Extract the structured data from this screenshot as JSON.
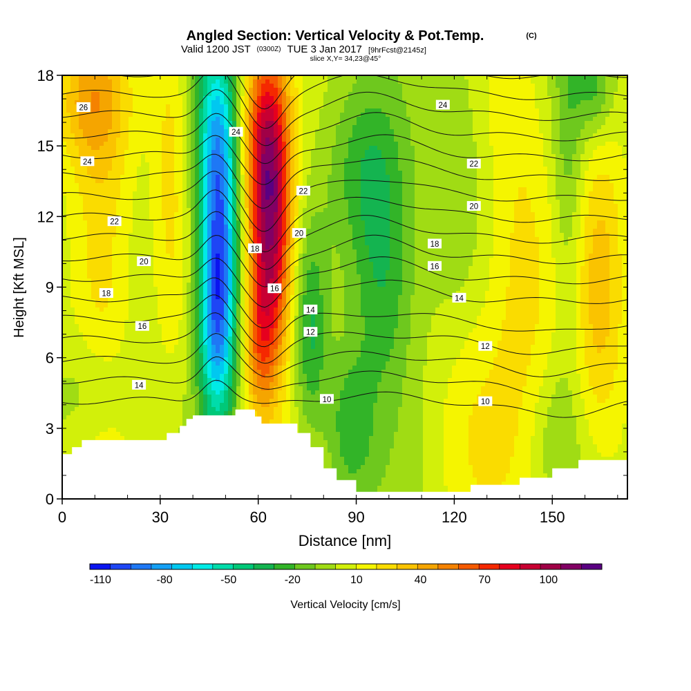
{
  "header": {
    "title": "Angled Section: Vertical Velocity & Pot.Temp.",
    "title_unit": "(C)",
    "valid_main": "Valid 1200 JST",
    "valid_z": "(0300Z)",
    "valid_date": "TUE 3 Jan 2017",
    "valid_fcst": "[9hrFcst@2145z]",
    "slice": "slice X,Y= 34,23@45°"
  },
  "chart_data": {
    "type": "heatmap",
    "title": "Angled Section: Vertical Velocity & Pot.Temp.",
    "xlabel": "Distance [nm]",
    "ylabel": "Height [Kft MSL]",
    "xlim": [
      0,
      173
    ],
    "ylim": [
      0,
      18
    ],
    "x_ticks": [
      0,
      30,
      60,
      90,
      120,
      150
    ],
    "y_ticks": [
      0,
      3,
      6,
      9,
      12,
      15,
      18
    ],
    "colorbar": {
      "label": "Vertical Velocity [cm/s]",
      "min": -115,
      "max": 125,
      "step": 10,
      "tick_labels": [
        "-110",
        "-80",
        "-50",
        "-20",
        "10",
        "40",
        "70",
        "100"
      ],
      "tick_values": [
        -110,
        -80,
        -50,
        -20,
        10,
        40,
        70,
        100
      ],
      "colors": [
        "#0a14f0",
        "#1e46f5",
        "#1e78f5",
        "#14a0f5",
        "#00c8f0",
        "#00ebe6",
        "#00dcaa",
        "#00c878",
        "#14b450",
        "#32b428",
        "#6ec81e",
        "#a0dc14",
        "#d2f00a",
        "#f5f500",
        "#fadc00",
        "#fac300",
        "#f5a500",
        "#f58200",
        "#f55a00",
        "#f52800",
        "#e6001e",
        "#c80032",
        "#a00046",
        "#820064",
        "#5a0082"
      ]
    },
    "surface": {
      "x": [
        0,
        3,
        3,
        6,
        6,
        8,
        8,
        12,
        12,
        18,
        18,
        22,
        22,
        24,
        24,
        32,
        32,
        36,
        36,
        38,
        38,
        40,
        40,
        53,
        53,
        59,
        59,
        61,
        61,
        65,
        65,
        72,
        72,
        76,
        76,
        80,
        80,
        84,
        84,
        90,
        90,
        125,
        125,
        140,
        140,
        150,
        150,
        158,
        158,
        173
      ],
      "height": [
        1.9,
        1.9,
        2.2,
        2.2,
        2.5,
        2.5,
        2.5,
        2.5,
        2.5,
        2.5,
        2.5,
        2.5,
        2.5,
        2.5,
        2.5,
        2.5,
        2.8,
        2.8,
        3.1,
        3.1,
        3.4,
        3.4,
        3.55,
        3.55,
        3.8,
        3.8,
        3.5,
        3.5,
        3.2,
        3.2,
        3.2,
        3.2,
        2.8,
        2.8,
        2.2,
        2.2,
        1.3,
        1.3,
        0.8,
        0.8,
        0.3,
        0.3,
        0.6,
        0.6,
        0.9,
        0.9,
        1.3,
        1.3,
        1.65,
        1.65
      ]
    },
    "velocity_features": [
      {
        "x": 48,
        "z": 11,
        "sx": 4.2,
        "sz": 4.5,
        "w": -88
      },
      {
        "x": 47,
        "z": 7,
        "sx": 4.0,
        "sz": 3.0,
        "w": -45
      },
      {
        "x": 47,
        "z": 16,
        "sx": 4.5,
        "sz": 3.0,
        "w": -35
      },
      {
        "x": 64,
        "z": 11,
        "sx": 4.6,
        "sz": 4.2,
        "w": 95
      },
      {
        "x": 62,
        "z": 15.5,
        "sx": 5.0,
        "sz": 3.0,
        "w": 55
      },
      {
        "x": 60,
        "z": 6.5,
        "sx": 3.5,
        "sz": 2.5,
        "w": 35
      },
      {
        "x": 76,
        "z": 7,
        "sx": 3.5,
        "sz": 3.0,
        "w": -30
      },
      {
        "x": 98,
        "z": 9.5,
        "sx": 7.0,
        "sz": 4.0,
        "w": -35
      },
      {
        "x": 88,
        "z": 3,
        "sx": 5.0,
        "sz": 2.2,
        "w": -25
      },
      {
        "x": 92,
        "z": 14,
        "sx": 8.0,
        "sz": 2.5,
        "w": -20
      },
      {
        "x": 33,
        "z": 15,
        "sx": 4.0,
        "sz": 6.0,
        "w": 22
      },
      {
        "x": 12,
        "z": 10,
        "sx": 7.0,
        "sz": 7.0,
        "w": 28
      },
      {
        "x": 8,
        "z": 17,
        "sx": 8.0,
        "sz": 2.0,
        "w": 30
      },
      {
        "x": 10,
        "z": 4.5,
        "sx": 7.0,
        "sz": 1.8,
        "w": -18
      },
      {
        "x": 140,
        "z": 9,
        "sx": 8.0,
        "sz": 8.0,
        "w": 22
      },
      {
        "x": 165,
        "z": 9,
        "sx": 6.0,
        "sz": 5.0,
        "w": 32
      },
      {
        "x": 155,
        "z": 14,
        "sx": 3.5,
        "sz": 6.0,
        "w": -20
      },
      {
        "x": 163,
        "z": 17.5,
        "sx": 4.0,
        "sz": 1.5,
        "w": -25
      },
      {
        "x": 120,
        "z": 15,
        "sx": 6.0,
        "sz": 4.0,
        "w": -12
      },
      {
        "x": 125,
        "z": 4,
        "sx": 8.0,
        "sz": 4.0,
        "w": 14
      },
      {
        "x": 150,
        "z": 3,
        "sx": 5.0,
        "sz": 2.0,
        "w": -10
      }
    ],
    "theta_levels": [
      10,
      11,
      12,
      13,
      14,
      15,
      16,
      17,
      18,
      19,
      20,
      21,
      22,
      23,
      24,
      25,
      26
    ],
    "theta_model": {
      "base_at_0kft": 5.2,
      "per_kft": 1.15
    },
    "contour_labels": [
      {
        "value": "26",
        "x": 6.5,
        "z": 16.65
      },
      {
        "value": "24",
        "x": 7.7,
        "z": 14.35
      },
      {
        "value": "22",
        "x": 16.0,
        "z": 11.8
      },
      {
        "value": "20",
        "x": 25.0,
        "z": 10.1
      },
      {
        "value": "18",
        "x": 13.5,
        "z": 8.75
      },
      {
        "value": "16",
        "x": 24.5,
        "z": 7.35
      },
      {
        "value": "14",
        "x": 23.5,
        "z": 4.85
      },
      {
        "value": "24",
        "x": 53.2,
        "z": 15.6
      },
      {
        "value": "22",
        "x": 73.8,
        "z": 13.1
      },
      {
        "value": "20",
        "x": 72.5,
        "z": 11.3
      },
      {
        "value": "18",
        "x": 59.0,
        "z": 10.65
      },
      {
        "value": "16",
        "x": 65.0,
        "z": 8.95
      },
      {
        "value": "14",
        "x": 76.0,
        "z": 8.05
      },
      {
        "value": "12",
        "x": 76.0,
        "z": 7.1
      },
      {
        "value": "10",
        "x": 81.0,
        "z": 4.25
      },
      {
        "value": "24",
        "x": 116.5,
        "z": 16.75
      },
      {
        "value": "22",
        "x": 126.0,
        "z": 14.25
      },
      {
        "value": "20",
        "x": 126.0,
        "z": 12.45
      },
      {
        "value": "18",
        "x": 114.0,
        "z": 10.85
      },
      {
        "value": "16",
        "x": 114.0,
        "z": 9.9
      },
      {
        "value": "14",
        "x": 121.5,
        "z": 8.55
      },
      {
        "value": "12",
        "x": 129.5,
        "z": 6.5
      },
      {
        "value": "10",
        "x": 129.5,
        "z": 4.15
      }
    ]
  }
}
